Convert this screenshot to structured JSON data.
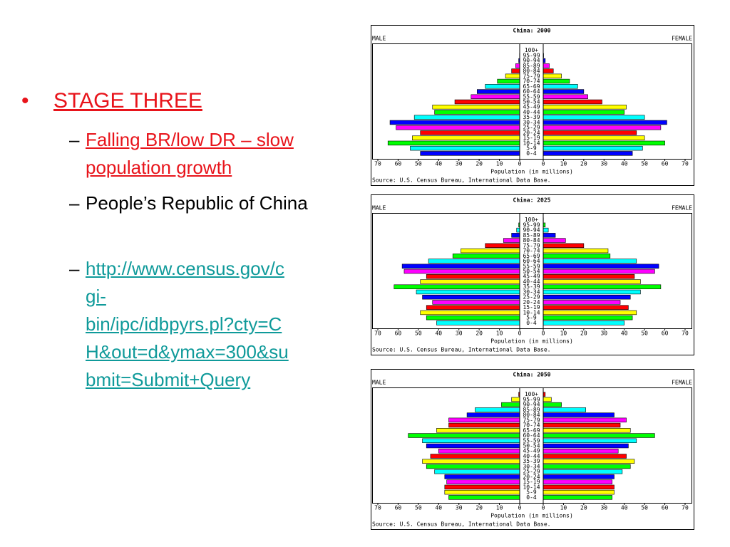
{
  "slide": {
    "heading": "STAGE THREE",
    "bullets": [
      "Falling BR/low DR – slow population growth",
      "People’s Republic of China"
    ],
    "link_lines": [
      "http://www.census.gov/c",
      "gi-",
      "bin/ipc/idbpyrs.pl?cty=C",
      "H&out=d&ymax=300&su",
      "bmit=Submit+Query"
    ]
  },
  "chart_data": [
    {
      "type": "pyramid",
      "title": "China: 2000",
      "x_label": "Population (in millions)",
      "source": "Source: U.S. Census Bureau, International Data Base.",
      "categories": [
        "0-4",
        "5-9",
        "10-14",
        "15-19",
        "20-24",
        "25-29",
        "30-34",
        "35-39",
        "40-44",
        "45-49",
        "50-54",
        "55-59",
        "60-64",
        "65-69",
        "70-74",
        "75-79",
        "80-84",
        "85-89",
        "90-94",
        "95-99",
        "100+"
      ],
      "colors": [
        "#0000ff",
        "#00ffff",
        "#00ff00",
        "#ffff00",
        "#ff0000",
        "#ff00ff"
      ],
      "xlim": [
        0,
        70
      ],
      "xticks": [
        0,
        10,
        20,
        30,
        40,
        50,
        60,
        70
      ],
      "series": [
        {
          "name": "MALE",
          "values": [
            49,
            54,
            65,
            53,
            49,
            61,
            64,
            52,
            42,
            43,
            32,
            24,
            21,
            17,
            11,
            7,
            4,
            2,
            0.5,
            0.1,
            0
          ]
        },
        {
          "name": "FEMALE",
          "values": [
            44,
            49,
            60,
            50,
            46,
            58,
            61,
            50,
            40,
            41,
            29,
            22,
            20,
            17,
            13,
            9,
            5,
            3,
            1,
            0.2,
            0
          ]
        }
      ]
    },
    {
      "type": "pyramid",
      "title": "China: 2025",
      "x_label": "Population (in millions)",
      "source": "Source: U.S. Census Bureau, International Data Base.",
      "categories": [
        "0-4",
        "5-9",
        "10-14",
        "15-19",
        "20-24",
        "25-29",
        "30-34",
        "35-39",
        "40-44",
        "45-49",
        "50-54",
        "55-59",
        "60-64",
        "65-69",
        "70-74",
        "75-79",
        "80-84",
        "85-89",
        "90-94",
        "95-99",
        "100+"
      ],
      "colors": [
        "#00ffff",
        "#00ff00",
        "#ffff00",
        "#ff0000",
        "#ff00ff",
        "#0000ff"
      ],
      "xlim": [
        0,
        70
      ],
      "xticks": [
        0,
        10,
        20,
        30,
        40,
        50,
        60,
        70
      ],
      "series": [
        {
          "name": "MALE",
          "values": [
            41,
            46,
            49,
            46,
            43,
            48,
            51,
            62,
            49,
            46,
            57,
            58,
            45,
            33,
            29,
            17,
            8,
            4,
            1.5,
            0.5,
            0
          ]
        },
        {
          "name": "FEMALE",
          "values": [
            40,
            44,
            46,
            42,
            38,
            43,
            48,
            58,
            48,
            45,
            55,
            57,
            46,
            33,
            32,
            20,
            11,
            6,
            2.5,
            1,
            0.1
          ]
        }
      ]
    },
    {
      "type": "pyramid",
      "title": "China: 2050",
      "x_label": "Population (in millions)",
      "source": "Source: U.S. Census Bureau, International Data Base.",
      "categories": [
        "0-4",
        "5-9",
        "10-14",
        "15-19",
        "20-24",
        "25-29",
        "30-34",
        "35-39",
        "40-44",
        "45-49",
        "50-54",
        "55-59",
        "60-64",
        "65-69",
        "70-74",
        "75-79",
        "80-84",
        "85-89",
        "90-94",
        "95-99",
        "100+"
      ],
      "colors": [
        "#00ff00",
        "#ffff00",
        "#ff0000",
        "#ff00ff",
        "#0000ff",
        "#00ffff"
      ],
      "xlim": [
        0,
        70
      ],
      "xticks": [
        0,
        10,
        20,
        30,
        40,
        50,
        60,
        70
      ],
      "series": [
        {
          "name": "MALE",
          "values": [
            35,
            37,
            37,
            36,
            37,
            42,
            46,
            48,
            44,
            40,
            46,
            48,
            55,
            41,
            35,
            35,
            26,
            22,
            9,
            4,
            0.5
          ]
        },
        {
          "name": "FEMALE",
          "values": [
            34,
            35,
            35,
            34,
            35,
            39,
            43,
            45,
            41,
            37,
            42,
            46,
            55,
            43,
            38,
            41,
            35,
            21,
            9,
            4,
            1
          ]
        }
      ]
    }
  ]
}
